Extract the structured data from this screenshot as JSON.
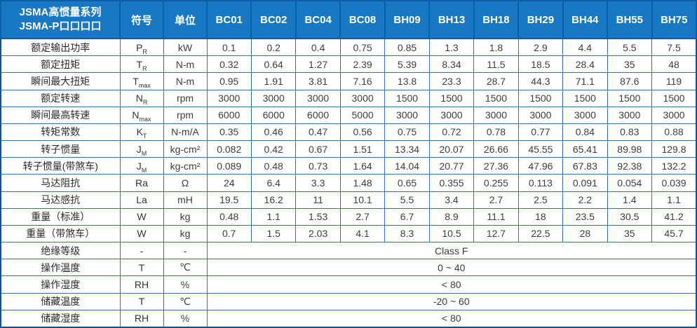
{
  "table": {
    "header": {
      "title_line1": "JSMA高惯量系列",
      "title_line2": "JSMA-P口口口口",
      "symbol_col": "符号",
      "unit_col": "单位",
      "models": [
        "BC01",
        "BC02",
        "BC04",
        "BC08",
        "BH09",
        "BH13",
        "BH18",
        "BH29",
        "BH44",
        "BH55",
        "BH75"
      ]
    },
    "rows": [
      {
        "label": "额定输出功率",
        "symbol": "P",
        "symbol_sub": "R",
        "unit": "kW",
        "values": [
          "0.1",
          "0.2",
          "0.4",
          "0.75",
          "0.85",
          "1.3",
          "1.8",
          "2.9",
          "4.4",
          "5.5",
          "7.5"
        ]
      },
      {
        "label": "额定扭矩",
        "symbol": "T",
        "symbol_sub": "R",
        "unit": "N-m",
        "values": [
          "0.32",
          "0.64",
          "1.27",
          "2.39",
          "5.39",
          "8.34",
          "11.5",
          "18.5",
          "28.4",
          "35",
          "48"
        ]
      },
      {
        "label": "瞬间最大扭矩",
        "symbol": "T",
        "symbol_sub": "max",
        "unit": "N-m",
        "values": [
          "0.95",
          "1.91",
          "3.81",
          "7.16",
          "13.8",
          "23.3",
          "28.7",
          "44.3",
          "71.1",
          "87.6",
          "119"
        ]
      },
      {
        "label": "额定转速",
        "symbol": "N",
        "symbol_sub": "R",
        "unit": "rpm",
        "values": [
          "3000",
          "3000",
          "3000",
          "3000",
          "1500",
          "1500",
          "1500",
          "1500",
          "1500",
          "1500",
          "1500"
        ]
      },
      {
        "label": "瞬间最高转速",
        "symbol": "N",
        "symbol_sub": "max",
        "unit": "rpm",
        "values": [
          "6000",
          "6000",
          "6000",
          "5000",
          "3000",
          "3000",
          "3000",
          "3000",
          "3000",
          "3000",
          "3000"
        ]
      },
      {
        "label": "转矩常数",
        "symbol": "K",
        "symbol_sub": "T",
        "unit": "N-m/A",
        "values": [
          "0.35",
          "0.46",
          "0.47",
          "0.56",
          "0.75",
          "0.72",
          "0.78",
          "0.77",
          "0.84",
          "0.83",
          "0.88"
        ]
      },
      {
        "label": "转子惯量",
        "symbol": "J",
        "symbol_sub": "M",
        "unit": "kg-cm²",
        "values": [
          "0.082",
          "0.42",
          "0.67",
          "1.51",
          "13.34",
          "20.07",
          "26.66",
          "45.55",
          "65.41",
          "89.98",
          "129.8"
        ]
      },
      {
        "label": "转子惯量(带煞车)",
        "symbol": "J",
        "symbol_sub": "M",
        "unit": "kg-cm²",
        "values": [
          "0.089",
          "0.48",
          "0.73",
          "1.64",
          "14.04",
          "20.77",
          "27.36",
          "47.96",
          "67.83",
          "92.38",
          "132.2"
        ]
      },
      {
        "label": "马达阻抗",
        "symbol": "Ra",
        "symbol_sub": "",
        "unit": "Ω",
        "values": [
          "24",
          "6.4",
          "3.3",
          "1.48",
          "0.65",
          "0.355",
          "0.255",
          "0.113",
          "0.091",
          "0.054",
          "0.039"
        ]
      },
      {
        "label": "马达感抗",
        "symbol": "La",
        "symbol_sub": "",
        "unit": "mH",
        "values": [
          "19.5",
          "16.2",
          "11",
          "10.1",
          "5.5",
          "3.4",
          "2.7",
          "2.5",
          "2.2",
          "1.4",
          "1.1"
        ]
      },
      {
        "label": "重量（标准）",
        "symbol": "W",
        "symbol_sub": "",
        "unit": "kg",
        "values": [
          "0.48",
          "1.1",
          "1.53",
          "2.7",
          "6.7",
          "8.9",
          "11.1",
          "18",
          "23.5",
          "30.5",
          "41.2"
        ]
      },
      {
        "label": "重量（带煞车）",
        "symbol": "W",
        "symbol_sub": "",
        "unit": "kg",
        "values": [
          "0.7",
          "1.5",
          "2.03",
          "4.1",
          "8.3",
          "10.5",
          "12.7",
          "22.5",
          "28",
          "35",
          "45.7"
        ]
      }
    ],
    "merged_rows": [
      {
        "label": "绝缘等级",
        "symbol": "-",
        "unit": "-",
        "value": "Class F"
      },
      {
        "label": "操作温度",
        "symbol": "T",
        "unit": "℃",
        "value": "0 ~ 40"
      },
      {
        "label": "操作湿度",
        "symbol": "RH",
        "unit": "%",
        "value": "< 80"
      },
      {
        "label": "储藏温度",
        "symbol": "T",
        "unit": "℃",
        "value": "-20 ~ 60"
      },
      {
        "label": "储藏湿度",
        "symbol": "RH",
        "unit": "%",
        "value": "< 80"
      }
    ],
    "colors": {
      "header_bg": "#1878c4",
      "header_border": "#0f5fa8",
      "cell_border": "#2e74b5",
      "outer_border": "#0b5394",
      "header_text": "#ffffff",
      "body_text": "#3d3d3d"
    }
  }
}
